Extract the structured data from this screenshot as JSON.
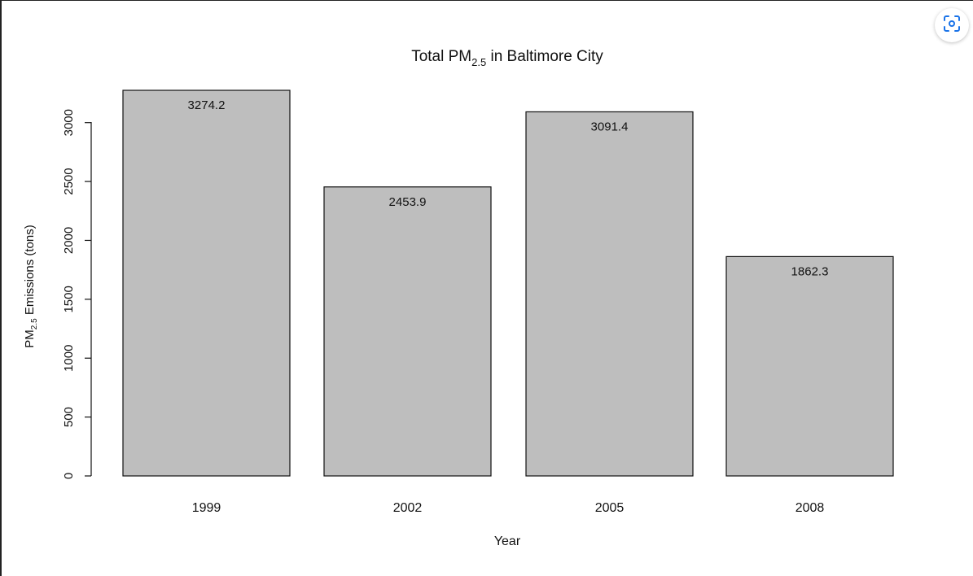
{
  "lens_button": {
    "icon": "image-search-icon",
    "color": "#1a73e8"
  },
  "chart_data": {
    "type": "bar",
    "title_prefix": "Total PM",
    "title_sub": "2.5",
    "title_suffix": " in Baltimore City",
    "xlabel": "Year",
    "ylabel_prefix": "PM",
    "ylabel_sub": "2.5",
    "ylabel_suffix": " Emissions (tons)",
    "categories": [
      "1999",
      "2002",
      "2005",
      "2008"
    ],
    "values": [
      3274.2,
      2453.9,
      3091.4,
      1862.3
    ],
    "value_labels": [
      "3274.2",
      "2453.9",
      "3091.4",
      "1862.3"
    ],
    "yticks": [
      "0",
      "500",
      "1000",
      "1500",
      "2000",
      "2500",
      "3000"
    ],
    "ylim": [
      0,
      3274.2
    ],
    "bar_color": "#bebebe",
    "grid": false
  }
}
